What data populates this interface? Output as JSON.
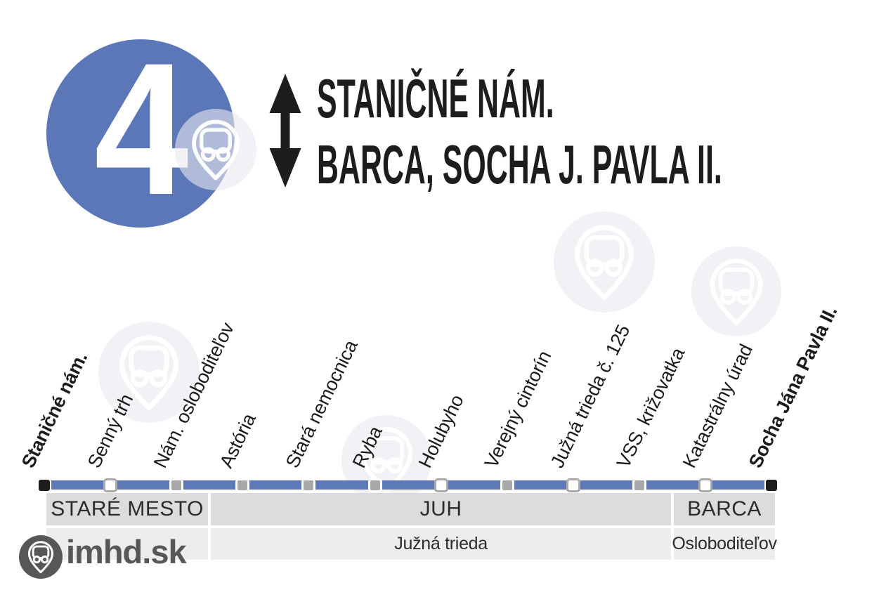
{
  "badge": {
    "line_number": "4"
  },
  "header": {
    "direction_icon": "double-headed-vertical-arrow",
    "terminus_a": "STANIČNÉ NÁM.",
    "terminus_b": "BARCA, SOCHA J. PAVLA II."
  },
  "route": {
    "stops": [
      {
        "name": "Staničné nám.",
        "type": "terminus",
        "emphasis": "bold"
      },
      {
        "name": "Senný trh",
        "type": "request"
      },
      {
        "name": "Nám. osloboditeľov",
        "type": "regular"
      },
      {
        "name": "Astória",
        "type": "regular"
      },
      {
        "name": "Stará nemocnica",
        "type": "regular"
      },
      {
        "name": "Ryba",
        "type": "regular"
      },
      {
        "name": "Holubyho",
        "type": "request"
      },
      {
        "name": "Verejný cintorín",
        "type": "regular"
      },
      {
        "name": "Južná trieda č. 125",
        "type": "request"
      },
      {
        "name": "VSS, križovatka",
        "type": "regular"
      },
      {
        "name": "Katastrálny úrad",
        "type": "request"
      },
      {
        "name": "Socha Jána Pavla II.",
        "type": "terminus",
        "emphasis": "bold"
      }
    ]
  },
  "zones": [
    {
      "label": "STARÉ MESTO",
      "from_stop": 0,
      "to_stop": 2
    },
    {
      "label": "JUH",
      "from_stop": 3,
      "to_stop": 9
    },
    {
      "label": "BARCA",
      "from_stop": 10,
      "to_stop": 11
    }
  ],
  "streets": [
    {
      "label": "",
      "from_stop": 0,
      "to_stop": 2
    },
    {
      "label": "Južná trieda",
      "from_stop": 3,
      "to_stop": 9
    },
    {
      "label": "Osloboditeľov",
      "from_stop": 10,
      "to_stop": 11
    }
  ],
  "branding": {
    "logo_text": "imhd.sk",
    "logo_icon": "bus-pin"
  },
  "colors": {
    "badge_blue": "#5b77b7",
    "line_blue": "#5d79b7",
    "zone_band": "#dcdcdc",
    "street_band": "#ededee",
    "marker_gray": "#a9a9aa",
    "terminus_black": "#1d1d1b",
    "logo_gray": "#57575a",
    "text_black": "#1b1b19"
  }
}
